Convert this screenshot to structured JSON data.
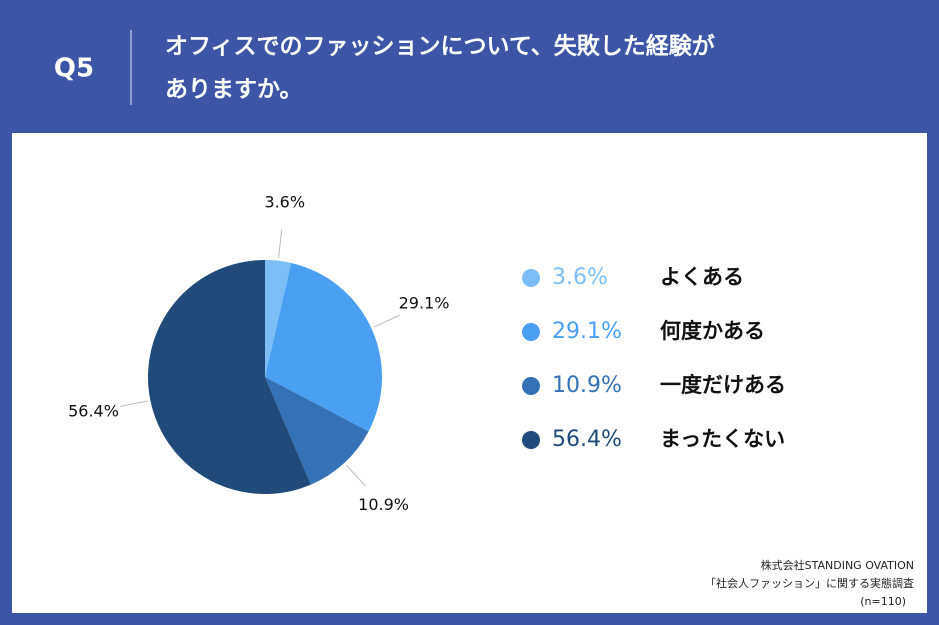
{
  "chart_data": {
    "type": "pie",
    "question_number": "Q5",
    "title": [
      "オフィスでのファッションについて、失敗した経験が",
      "ありますか。"
    ],
    "categories": [
      "よくある",
      "何度かある",
      "一度だけある",
      "まったくない"
    ],
    "values": [
      3.6,
      29.1,
      10.9,
      56.4
    ],
    "value_labels": [
      "3.6%",
      "29.1%",
      "10.9%",
      "56.4%"
    ],
    "colors": [
      "#7cbdf6",
      "#4a9ff2",
      "#3571b5",
      "#1f4a79"
    ],
    "source": [
      "株式会社STANDING OVATION",
      "「社会人ファッション」に関する実態調査",
      "(n=110)"
    ]
  }
}
